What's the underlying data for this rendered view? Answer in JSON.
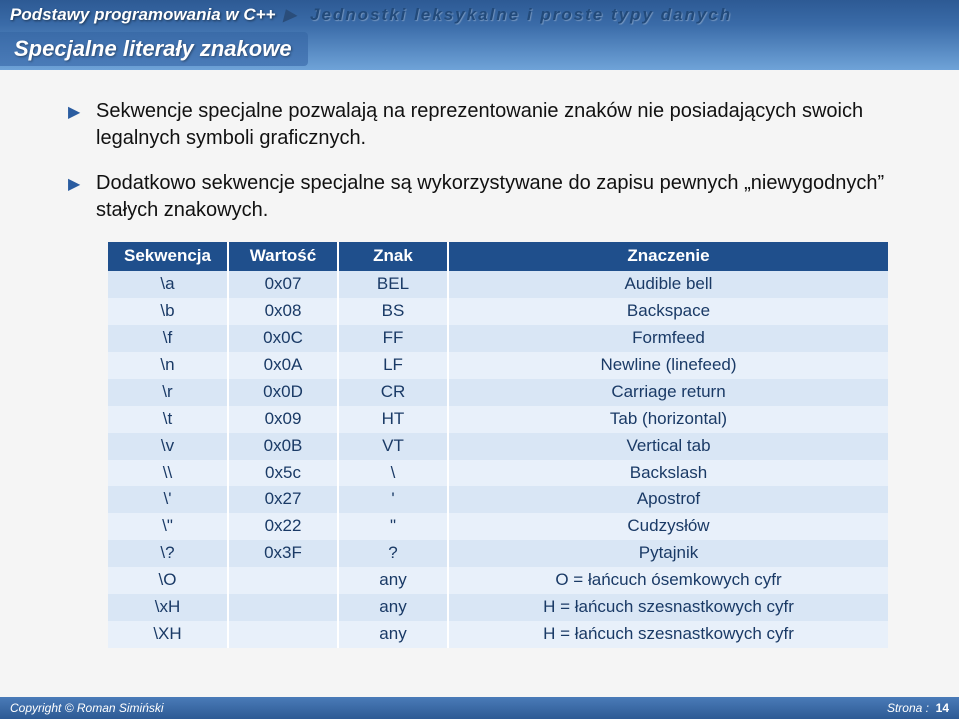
{
  "header": {
    "breadcrumb": "Podstawy programowania w C++",
    "subhead": "Jednostki leksykalne i proste typy danych",
    "section": "Specjalne literały znakowe"
  },
  "bullets": [
    "Sekwencje specjalne pozwalają na reprezentowanie znaków nie posiadających swoich legalnych symboli graficznych.",
    "Dodatkowo sekwencje specjalne są wykorzystywane do zapisu pewnych „niewygodnych” stałych znakowych."
  ],
  "table": {
    "headers": [
      "Sekwencja",
      "Wartość",
      "Znak",
      "Znaczenie"
    ],
    "rows": [
      [
        "\\a",
        "0x07",
        "BEL",
        "Audible bell"
      ],
      [
        "\\b",
        "0x08",
        "BS",
        "Backspace"
      ],
      [
        "\\f",
        "0x0C",
        "FF",
        "Formfeed"
      ],
      [
        "\\n",
        "0x0A",
        "LF",
        "Newline (linefeed)"
      ],
      [
        "\\r",
        "0x0D",
        "CR",
        "Carriage return"
      ],
      [
        "\\t",
        "0x09",
        "HT",
        "Tab (horizontal)"
      ],
      [
        "\\v",
        "0x0B",
        "VT",
        "Vertical tab"
      ],
      [
        "\\\\",
        "0x5c",
        "\\",
        "Backslash"
      ],
      [
        "\\'",
        "0x27",
        "'",
        "Apostrof"
      ],
      [
        "\\\"",
        "0x22",
        "\"",
        "Cudzysłów"
      ],
      [
        "\\?",
        "0x3F",
        "?",
        "Pytajnik"
      ],
      [
        "\\O",
        "",
        "any",
        "O = łańcuch ósemkowych cyfr"
      ],
      [
        "\\xH",
        "",
        "any",
        "H = łańcuch szesnastkowych cyfr"
      ],
      [
        "\\XH",
        "",
        "any",
        "H = łańcuch szesnastkowych cyfr"
      ]
    ]
  },
  "footer": {
    "copyright": "Copyright © Roman Simiński",
    "page_label": "Strona :",
    "page_num": "14"
  },
  "colors": {
    "header_grad_top": "#2d5a94",
    "header_grad_bot": "#6fa3d8",
    "table_header_bg": "#1f4f8c",
    "row_odd_bg": "#d9e6f5",
    "row_even_bg": "#e8f0fa",
    "cell_text": "#1a3a66"
  }
}
